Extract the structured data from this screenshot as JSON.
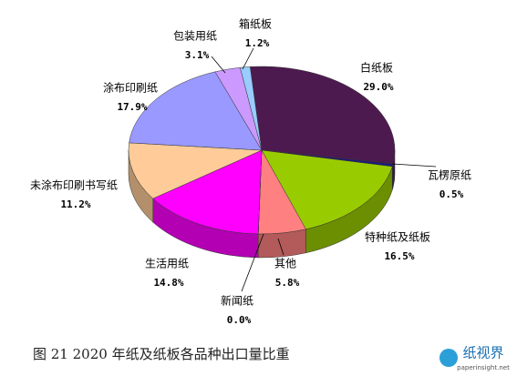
{
  "chart_data": {
    "type": "pie",
    "caption": "图 21   2020 年纸及纸板各品种出口量比重",
    "categories": [
      "白纸板",
      "瓦楞原纸",
      "特种纸及纸板",
      "其他",
      "新闻纸",
      "生活用纸",
      "未涂布印刷书写纸",
      "涂布印刷纸",
      "包装用纸",
      "箱纸板"
    ],
    "values": [
      29.0,
      0.5,
      16.5,
      5.8,
      0.0,
      14.8,
      11.2,
      17.9,
      3.1,
      1.2
    ],
    "value_labels": [
      "29.0%",
      "0.5%",
      "16.5%",
      "5.8%",
      "0.0%",
      "14.8%",
      "11.2%",
      "17.9%",
      "3.1%",
      "1.2%"
    ],
    "colors": [
      "#4d1a50",
      "#1a1a80",
      "#99cc00",
      "#ff8080",
      "#ffff99",
      "#ff00ff",
      "#ffcc99",
      "#9999ff",
      "#cc99ff",
      "#99ccff"
    ]
  },
  "watermark": {
    "name": "纸视界",
    "site": "paperinsight.net"
  }
}
